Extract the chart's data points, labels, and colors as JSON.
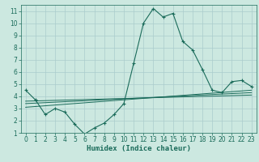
{
  "xlabel": "Humidex (Indice chaleur)",
  "bg_color": "#cce8e0",
  "grid_color": "#aacccc",
  "line_color": "#1a6b5a",
  "xlim": [
    -0.5,
    23.5
  ],
  "ylim": [
    1,
    11.5
  ],
  "xticks": [
    0,
    1,
    2,
    3,
    4,
    5,
    6,
    7,
    8,
    9,
    10,
    11,
    12,
    13,
    14,
    15,
    16,
    17,
    18,
    19,
    20,
    21,
    22,
    23
  ],
  "yticks": [
    1,
    2,
    3,
    4,
    5,
    6,
    7,
    8,
    9,
    10,
    11
  ],
  "line1_x": [
    0,
    1,
    2,
    3,
    4,
    5,
    6,
    7,
    8,
    9,
    10,
    11,
    12,
    13,
    14,
    15,
    16,
    17,
    18,
    19,
    20,
    21,
    22,
    23
  ],
  "line1_y": [
    4.5,
    3.7,
    2.5,
    3.0,
    2.7,
    1.7,
    0.9,
    1.4,
    1.8,
    2.5,
    3.4,
    6.7,
    10.0,
    11.2,
    10.5,
    10.8,
    8.5,
    7.8,
    6.2,
    4.5,
    4.3,
    5.2,
    5.3,
    4.8
  ],
  "line2_x": [
    0,
    23
  ],
  "line2_y": [
    3.1,
    4.5
  ],
  "line3_x": [
    0,
    23
  ],
  "line3_y": [
    3.4,
    4.3
  ],
  "line4_x": [
    0,
    23
  ],
  "line4_y": [
    3.6,
    4.1
  ]
}
